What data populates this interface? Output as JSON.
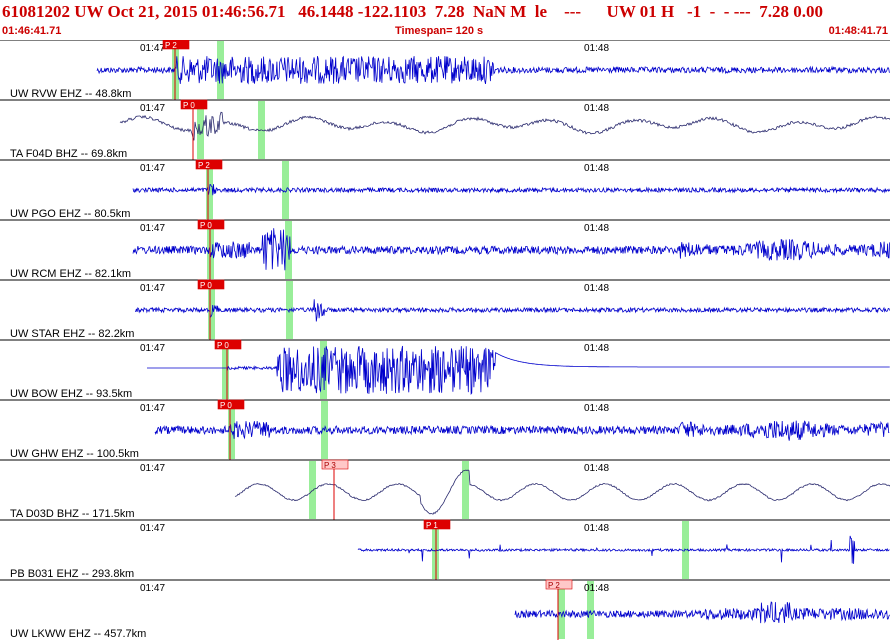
{
  "header": {
    "title": "61081202 UW Oct 21, 2015 01:46:56.71   46.1448 -122.1103  7.28  NaN M  le    ---      UW 01 H   -1  -  - ---  7.28 0.00",
    "start_time": "01:46:41.71",
    "timespan": "Timespan= 120 s",
    "end_time": "01:48:41.71"
  },
  "colors": {
    "header_text": "#cc0000",
    "trace_blue": "#0000cc",
    "trace_navy": "#2a2a6e",
    "pick_red": "#dd0000",
    "pick_light": "#ffc8c8",
    "theoretical_green": "#99ee99",
    "separator": "#000000"
  },
  "tick_labels": [
    "01:47",
    "01:48"
  ],
  "traces": [
    {
      "label": "UW RVW EHZ -- 48.8km",
      "pick": "P 2",
      "pick_style": "filled",
      "trace_color": "blue",
      "style": "burst"
    },
    {
      "label": "TA F04D BHZ -- 69.8km",
      "pick": "P 0",
      "pick_style": "filled",
      "trace_color": "navy",
      "style": "wavy"
    },
    {
      "label": "UW PGO EHZ -- 80.5km",
      "pick": "P 2",
      "pick_style": "filled",
      "trace_color": "blue",
      "style": "quiet"
    },
    {
      "label": "UW RCM EHZ -- 82.1km",
      "pick": "P 0",
      "pick_style": "filled",
      "trace_color": "blue",
      "style": "noisy"
    },
    {
      "label": "UW STAR EHZ -- 82.2km",
      "pick": "P 0",
      "pick_style": "filled",
      "trace_color": "blue",
      "style": "quiet"
    },
    {
      "label": "UW BOW EHZ -- 93.5km",
      "pick": "P 0",
      "pick_style": "filled",
      "trace_color": "blue",
      "style": "clipped"
    },
    {
      "label": "UW GHW EHZ -- 100.5km",
      "pick": "P 0",
      "pick_style": "filled",
      "trace_color": "blue",
      "style": "noisy"
    },
    {
      "label": "TA D03D BHZ -- 171.5km",
      "pick": "P 3",
      "pick_style": "light",
      "trace_color": "navy",
      "style": "longwave"
    },
    {
      "label": "PB B031 EHZ -- 293.8km",
      "pick": "P 1",
      "pick_style": "filled",
      "trace_color": "blue",
      "style": "spiky"
    },
    {
      "label": "UW LKWW EHZ -- 457.7km",
      "pick": "P 2",
      "pick_style": "light",
      "trace_color": "blue",
      "style": "late"
    }
  ]
}
